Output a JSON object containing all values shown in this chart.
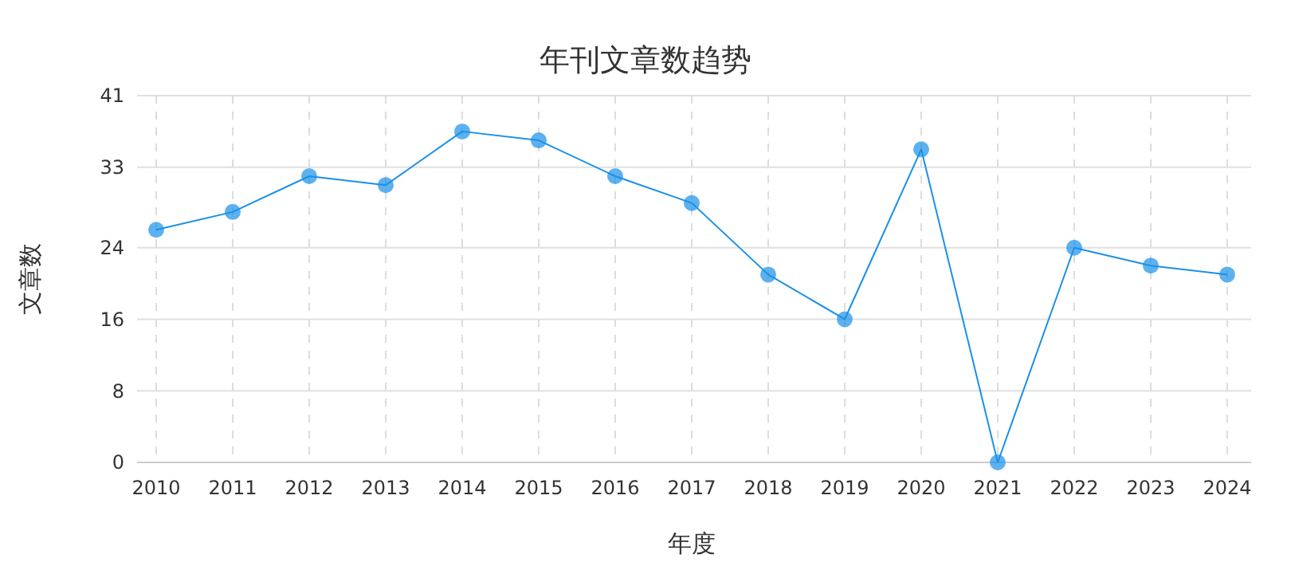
{
  "chart_data": {
    "type": "line",
    "title": "年刊文章数趋势",
    "xlabel": "年度",
    "ylabel": "文章数",
    "categories": [
      "2010",
      "2011",
      "2012",
      "2013",
      "2014",
      "2015",
      "2016",
      "2017",
      "2018",
      "2019",
      "2020",
      "2021",
      "2022",
      "2023",
      "2024"
    ],
    "series": [
      {
        "color": "#1a90e8",
        "values": [
          26,
          28,
          32,
          31,
          37,
          36,
          32,
          29,
          21,
          16,
          35,
          0,
          24,
          22,
          21
        ]
      }
    ],
    "ylim": [
      0,
      41
    ],
    "yticks": [
      0,
      8,
      16,
      24,
      33,
      41
    ],
    "grid": true,
    "marker": "circle",
    "line_style": "solid"
  }
}
